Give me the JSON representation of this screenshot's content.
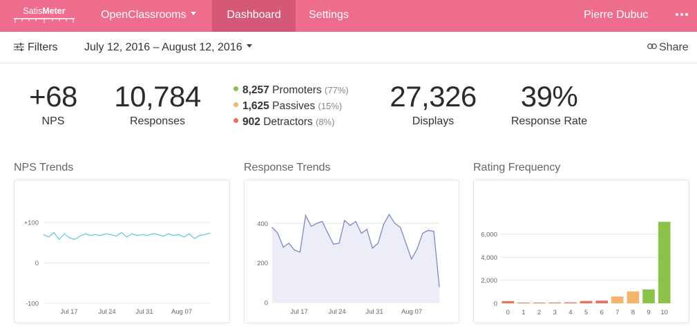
{
  "nav": {
    "logo": {
      "part1": "Satis",
      "part2": "Meter"
    },
    "org": "OpenClassrooms",
    "dashboard": "Dashboard",
    "settings": "Settings",
    "user": "Pierre Dubuc"
  },
  "toolbar": {
    "filters": "Filters",
    "date_range": "July 12, 2016 – August 12, 2016",
    "share": "Share"
  },
  "stats": {
    "nps": {
      "value": "+68",
      "label": "NPS"
    },
    "responses": {
      "value": "10,784",
      "label": "Responses"
    },
    "promoters": {
      "count": "8,257",
      "label": "Promoters",
      "pct": "(77%)"
    },
    "passives": {
      "count": "1,625",
      "label": "Passives",
      "pct": "(15%)"
    },
    "detractors": {
      "count": "902",
      "label": "Detractors",
      "pct": "(8%)"
    },
    "displays": {
      "value": "27,326",
      "label": "Displays"
    },
    "response_rate": {
      "value": "39%",
      "label": "Response Rate"
    }
  },
  "colors": {
    "brand": "#ef6d8c",
    "nav_active": "#d65877",
    "promoter": "#8bc34a",
    "passive": "#f5b66b",
    "detractor": "#e8725a",
    "nps_line": "#5bc8e0",
    "response_line": "#7b88c6",
    "response_fill": "#ecedf7"
  },
  "chart_data": [
    {
      "type": "line",
      "title": "NPS Trends",
      "y_ticks": [
        "+100",
        "0",
        "-100"
      ],
      "ylim": [
        -100,
        100
      ],
      "x_ticks": [
        "Jul 17",
        "Jul 24",
        "Jul 31",
        "Aug 07"
      ],
      "grid": true,
      "series": [
        {
          "values": [
            70,
            64,
            75,
            58,
            72,
            62,
            58,
            66,
            72,
            68,
            70,
            68,
            72,
            70,
            66,
            75,
            64,
            72,
            68,
            70,
            68,
            72,
            70,
            66,
            72,
            68,
            70,
            64,
            72,
            60,
            68,
            70,
            74
          ]
        }
      ]
    },
    {
      "type": "area",
      "title": "Response Trends",
      "y_ticks": [
        "400",
        "200",
        "0"
      ],
      "ylim": [
        0,
        450
      ],
      "x_ticks": [
        "Jul 17",
        "Jul 24",
        "Jul 31",
        "Aug 07"
      ],
      "grid": true,
      "series": [
        {
          "values": [
            380,
            350,
            280,
            300,
            265,
            255,
            440,
            385,
            400,
            410,
            350,
            295,
            300,
            415,
            390,
            410,
            350,
            370,
            275,
            300,
            395,
            445,
            400,
            380,
            300,
            220,
            270,
            350,
            365,
            360,
            80
          ]
        }
      ]
    },
    {
      "type": "bar",
      "title": "Rating Frequency",
      "categories": [
        "0",
        "1",
        "2",
        "3",
        "4",
        "5",
        "6",
        "7",
        "8",
        "9",
        "10"
      ],
      "values": [
        190,
        60,
        60,
        70,
        80,
        200,
        230,
        590,
        1030,
        1200,
        7070
      ],
      "y_ticks": [
        "6,000",
        "4,000",
        "2,000",
        "0"
      ],
      "ylim": [
        0,
        7800
      ],
      "grid": true
    }
  ]
}
